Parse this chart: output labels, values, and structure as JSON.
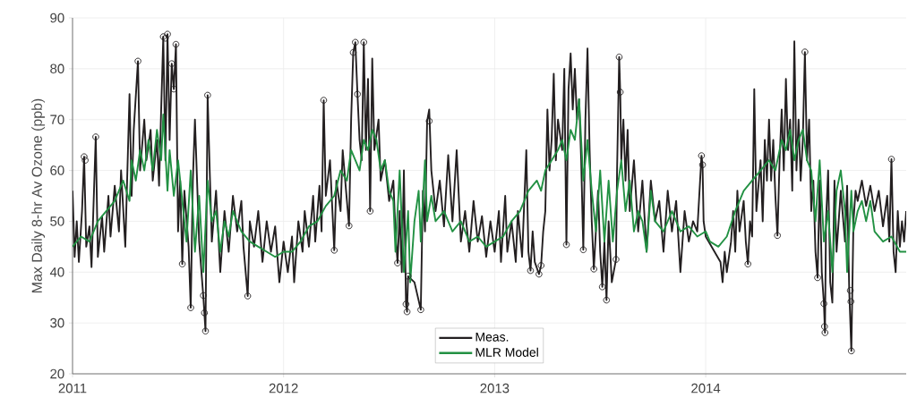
{
  "chart_data": {
    "type": "line",
    "ylabel": "Max Daily 8-hr Av Ozone (ppb)",
    "xlim": [
      2011,
      2014.95
    ],
    "xticks": [
      2011,
      2012,
      2013,
      2014
    ],
    "ylim": [
      20,
      90
    ],
    "yticks": [
      20,
      30,
      40,
      50,
      60,
      70,
      80,
      90
    ],
    "grid": true,
    "legend": "bottom",
    "series": [
      {
        "name": "Meas.",
        "color": "#231f20",
        "marker": "none",
        "x": [
          2011.0,
          2011.01,
          2011.02,
          2011.03,
          2011.045,
          2011.055,
          2011.065,
          2011.08,
          2011.09,
          2011.11,
          2011.12,
          2011.14,
          2011.15,
          2011.17,
          2011.18,
          2011.2,
          2011.22,
          2011.23,
          2011.25,
          2011.27,
          2011.28,
          2011.29,
          2011.31,
          2011.32,
          2011.34,
          2011.35,
          2011.37,
          2011.38,
          2011.4,
          2011.41,
          2011.42,
          2011.43,
          2011.44,
          2011.45,
          2011.46,
          2011.47,
          2011.48,
          2011.49,
          2011.5,
          2011.51,
          2011.52,
          2011.53,
          2011.55,
          2011.56,
          2011.57,
          2011.58,
          2011.6,
          2011.62,
          2011.63,
          2011.64,
          2011.65,
          2011.66,
          2011.68,
          2011.7,
          2011.72,
          2011.74,
          2011.76,
          2011.78,
          2011.8,
          2011.81,
          2011.83,
          2011.84,
          2011.86,
          2011.88,
          2011.9,
          2011.92,
          2011.94,
          2011.96,
          2011.98,
          2012.0,
          2012.02,
          2012.04,
          2012.05,
          2012.07,
          2012.09,
          2012.1,
          2012.12,
          2012.14,
          2012.15,
          2012.17,
          2012.18,
          2012.19,
          2012.2,
          2012.22,
          2012.24,
          2012.25,
          2012.27,
          2012.28,
          2012.3,
          2012.31,
          2012.32,
          2012.33,
          2012.34,
          2012.35,
          2012.36,
          2012.37,
          2012.38,
          2012.39,
          2012.4,
          2012.41,
          2012.42,
          2012.43,
          2012.45,
          2012.46,
          2012.48,
          2012.5,
          2012.52,
          2012.53,
          2012.54,
          2012.55,
          2012.56,
          2012.57,
          2012.58,
          2012.585,
          2012.59,
          2012.62,
          2012.65,
          2012.66,
          2012.67,
          2012.68,
          2012.69,
          2012.7,
          2012.72,
          2012.74,
          2012.76,
          2012.78,
          2012.8,
          2012.82,
          2012.84,
          2012.86,
          2012.88,
          2012.9,
          2012.92,
          2012.94,
          2012.96,
          2012.98,
          2013.0,
          2013.02,
          2013.03,
          2013.05,
          2013.06,
          2013.08,
          2013.1,
          2013.11,
          2013.13,
          2013.15,
          2013.16,
          2013.17,
          2013.18,
          2013.19,
          2013.21,
          2013.22,
          2013.23,
          2013.24,
          2013.25,
          2013.26,
          2013.27,
          2013.28,
          2013.29,
          2013.3,
          2013.32,
          2013.33,
          2013.34,
          2013.35,
          2013.36,
          2013.37,
          2013.38,
          2013.39,
          2013.4,
          2013.41,
          2013.42,
          2013.43,
          2013.44,
          2013.45,
          2013.46,
          2013.47,
          2013.49,
          2013.5,
          2013.51,
          2013.52,
          2013.53,
          2013.54,
          2013.555,
          2013.575,
          2013.58,
          2013.59,
          2013.595,
          2013.6,
          2013.61,
          2013.62,
          2013.63,
          2013.64,
          2013.66,
          2013.68,
          2013.7,
          2013.72,
          2013.74,
          2013.76,
          2013.78,
          2013.8,
          2013.82,
          2013.84,
          2013.86,
          2013.88,
          2013.9,
          2013.92,
          2013.94,
          2013.96,
          2013.98,
          2013.985,
          2013.99,
          2014.0,
          2014.07,
          2014.08,
          2014.09,
          2014.1,
          2014.12,
          2014.13,
          2014.14,
          2014.15,
          2014.16,
          2014.18,
          2014.19,
          2014.2,
          2014.21,
          2014.22,
          2014.23,
          2014.24,
          2014.26,
          2014.27,
          2014.28,
          2014.29,
          2014.3,
          2014.31,
          2014.32,
          2014.33,
          2014.34,
          2014.35,
          2014.36,
          2014.37,
          2014.38,
          2014.39,
          2014.4,
          2014.41,
          2014.42,
          2014.43,
          2014.44,
          2014.45,
          2014.46,
          2014.47,
          2014.48,
          2014.49,
          2014.5,
          2014.51,
          2014.52,
          2014.53,
          2014.54,
          2014.55,
          2014.56,
          2014.565,
          2014.57,
          2014.58,
          2014.59,
          2014.6,
          2014.61,
          2014.62,
          2014.64,
          2014.66,
          2014.67,
          2014.68,
          2014.69,
          2014.7,
          2014.71,
          2014.72,
          2014.74,
          2014.76,
          2014.78,
          2014.8,
          2014.82,
          2014.84,
          2014.86,
          2014.87,
          2014.88,
          2014.89,
          2014.9,
          2014.91,
          2014.92,
          2014.93,
          2014.94,
          2014.95
        ],
        "values": [
          56,
          43,
          50,
          42,
          52,
          62.7,
          45,
          49,
          41,
          66.6,
          43,
          51,
          44,
          55,
          47,
          57,
          48,
          60,
          45,
          75,
          55,
          68,
          81.5,
          60,
          70,
          62,
          68,
          58,
          66,
          57,
          72,
          86.3,
          62,
          86.8,
          66,
          81,
          76,
          84.8,
          48,
          58,
          41.6,
          56,
          45,
          33,
          58,
          70,
          46,
          35,
          28.4,
          74.8,
          60,
          46,
          56,
          40,
          52,
          44,
          55,
          48,
          54,
          45,
          35.3,
          50,
          45,
          52,
          42,
          50,
          44,
          49,
          38,
          46,
          40,
          47,
          38,
          50,
          44,
          52,
          45,
          55,
          46,
          57,
          48,
          73.8,
          55,
          62,
          44.3,
          58,
          52,
          64,
          54,
          49.1,
          70,
          83.2,
          85.2,
          75,
          66,
          62,
          85.2,
          64,
          78,
          52,
          82,
          64,
          70,
          58,
          62,
          54,
          58,
          48,
          41.8,
          52,
          40,
          60,
          33.7,
          32.2,
          39.2,
          38,
          32.6,
          56,
          48,
          69.7,
          72,
          60,
          52,
          58,
          49,
          63,
          50,
          64,
          46,
          52,
          44,
          54,
          46,
          51,
          43,
          50,
          44,
          52,
          42,
          55,
          44,
          50,
          42,
          52,
          43,
          64,
          44,
          40.3,
          48,
          42,
          39.6,
          41.3,
          48,
          52,
          72,
          60,
          66,
          79,
          62,
          70,
          64,
          80,
          45.4,
          76,
          83,
          72,
          80,
          70,
          74,
          62,
          44.4,
          70,
          84,
          64,
          50,
          40.6,
          56,
          44,
          37.1,
          46,
          34.5,
          50,
          38,
          42.5,
          60,
          82.3,
          75.4,
          62,
          70,
          58,
          68,
          52,
          62,
          48,
          58,
          44,
          58,
          50,
          54,
          44,
          56,
          48,
          54,
          40,
          52,
          46,
          50,
          48,
          62.9,
          61.1,
          50,
          47,
          42,
          38,
          44,
          40,
          46,
          52,
          44,
          56,
          48,
          54,
          46,
          41.6,
          50,
          47,
          76,
          52,
          62,
          50,
          66,
          58,
          70,
          58,
          66,
          55,
          47.2,
          62,
          72,
          60,
          78,
          64,
          70,
          56,
          85.4,
          60,
          70,
          58,
          66,
          83.3,
          62,
          70,
          52,
          58,
          44,
          38.9,
          58,
          40,
          33.8,
          28.1,
          50,
          60,
          38,
          34,
          58,
          44,
          56,
          46,
          57,
          36.4,
          24.5,
          50,
          56,
          54,
          58,
          53,
          57,
          52,
          56,
          49,
          55,
          46,
          62.2,
          44,
          40,
          52,
          45,
          50,
          46,
          52
        ]
      },
      {
        "name": "MLR Model",
        "color": "#229143",
        "marker": "none",
        "x": [
          2011.0,
          2011.04,
          2011.08,
          2011.12,
          2011.16,
          2011.2,
          2011.24,
          2011.27,
          2011.28,
          2011.3,
          2011.32,
          2011.34,
          2011.36,
          2011.38,
          2011.4,
          2011.42,
          2011.43,
          2011.45,
          2011.46,
          2011.48,
          2011.5,
          2011.52,
          2011.54,
          2011.56,
          2011.58,
          2011.6,
          2011.62,
          2011.64,
          2011.66,
          2011.68,
          2011.7,
          2011.72,
          2011.74,
          2011.76,
          2011.8,
          2011.84,
          2011.88,
          2011.92,
          2011.96,
          2012.0,
          2012.04,
          2012.08,
          2012.12,
          2012.16,
          2012.2,
          2012.24,
          2012.27,
          2012.3,
          2012.32,
          2012.34,
          2012.36,
          2012.38,
          2012.4,
          2012.42,
          2012.44,
          2012.46,
          2012.48,
          2012.5,
          2012.52,
          2012.53,
          2012.55,
          2012.57,
          2012.59,
          2012.6,
          2012.62,
          2012.64,
          2012.65,
          2012.67,
          2012.68,
          2012.7,
          2012.72,
          2012.76,
          2012.8,
          2012.84,
          2012.88,
          2012.92,
          2012.96,
          2013.0,
          2013.04,
          2013.08,
          2013.12,
          2013.16,
          2013.2,
          2013.22,
          2013.24,
          2013.27,
          2013.3,
          2013.32,
          2013.34,
          2013.36,
          2013.38,
          2013.4,
          2013.42,
          2013.44,
          2013.46,
          2013.48,
          2013.5,
          2013.52,
          2013.54,
          2013.56,
          2013.58,
          2013.6,
          2013.62,
          2013.64,
          2013.66,
          2013.68,
          2013.7,
          2013.72,
          2013.74,
          2013.76,
          2013.8,
          2013.84,
          2013.88,
          2013.92,
          2013.96,
          2014.0,
          2014.02,
          2014.06,
          2014.1,
          2014.14,
          2014.18,
          2014.22,
          2014.26,
          2014.3,
          2014.33,
          2014.36,
          2014.38,
          2014.4,
          2014.42,
          2014.44,
          2014.46,
          2014.48,
          2014.5,
          2014.52,
          2014.54,
          2014.56,
          2014.58,
          2014.6,
          2014.62,
          2014.64,
          2014.66,
          2014.67,
          2014.69,
          2014.7,
          2014.72,
          2014.74,
          2014.76,
          2014.78,
          2014.8,
          2014.84,
          2014.88,
          2014.92,
          2014.95
        ],
        "values": [
          45,
          47,
          46,
          50,
          52,
          54,
          58,
          54,
          62,
          58,
          64,
          60,
          66,
          60,
          68,
          62,
          71,
          56,
          64,
          55,
          62,
          54,
          46,
          60,
          44,
          55,
          40,
          58,
          50,
          52,
          44,
          50,
          47,
          52,
          48,
          46,
          45,
          44,
          43,
          44,
          44,
          46,
          49,
          50,
          53,
          55,
          60,
          58,
          64,
          62,
          60,
          66,
          64,
          68,
          66,
          60,
          62,
          56,
          54,
          44,
          60,
          40,
          52,
          38,
          50,
          56,
          46,
          62,
          50,
          55,
          50,
          52,
          48,
          50,
          46,
          47,
          45,
          46,
          47,
          50,
          52,
          56,
          58,
          56,
          60,
          62,
          64,
          66,
          62,
          68,
          66,
          74,
          58,
          66,
          56,
          48,
          60,
          46,
          58,
          46,
          56,
          62,
          52,
          58,
          48,
          52,
          50,
          44,
          56,
          50,
          48,
          52,
          48,
          49,
          47,
          48,
          46,
          45,
          47,
          52,
          56,
          58,
          60,
          62,
          60,
          66,
          64,
          68,
          62,
          66,
          68,
          62,
          60,
          50,
          62,
          46,
          52,
          40,
          56,
          60,
          52,
          40,
          56,
          48,
          52,
          54,
          50,
          54,
          48,
          46,
          47,
          44,
          44
        ]
      },
      {
        "type": "scatter",
        "color": "#231f20",
        "marker": "circle",
        "x": [
          2011.055,
          2011.06,
          2011.11,
          2011.31,
          2011.43,
          2011.44,
          2011.45,
          2011.47,
          2011.48,
          2011.49,
          2011.52,
          2011.56,
          2011.62,
          2011.625,
          2011.63,
          2011.64,
          2011.83,
          2012.19,
          2012.24,
          2012.31,
          2012.33,
          2012.34,
          2012.35,
          2012.38,
          2012.41,
          2012.54,
          2012.58,
          2012.585,
          2012.59,
          2012.65,
          2012.69,
          2013.17,
          2013.21,
          2013.22,
          2013.34,
          2013.42,
          2013.47,
          2013.51,
          2013.53,
          2013.575,
          2013.59,
          2013.595,
          2013.98,
          2013.985,
          2014.2,
          2014.34,
          2014.47,
          2014.53,
          2014.56,
          2014.563,
          2014.565,
          2014.685,
          2014.688,
          2014.69,
          2014.88
        ],
        "values": [
          62.7,
          62.0,
          66.6,
          81.5,
          86.3,
          86.0,
          86.8,
          81,
          76,
          84.8,
          41.6,
          33,
          35.4,
          32,
          28.4,
          74.8,
          35.3,
          73.8,
          44.3,
          49.1,
          83.2,
          85.2,
          75,
          85.2,
          52,
          41.8,
          33.7,
          32.2,
          39.2,
          32.6,
          69.7,
          40.3,
          39.6,
          41.3,
          45.4,
          44.4,
          40.6,
          37.1,
          34.5,
          42.5,
          82.3,
          75.4,
          62.9,
          61.1,
          41.6,
          47.2,
          83.3,
          38.9,
          33.8,
          29.3,
          28.1,
          36.4,
          34.2,
          24.5,
          62.2
        ]
      }
    ]
  }
}
